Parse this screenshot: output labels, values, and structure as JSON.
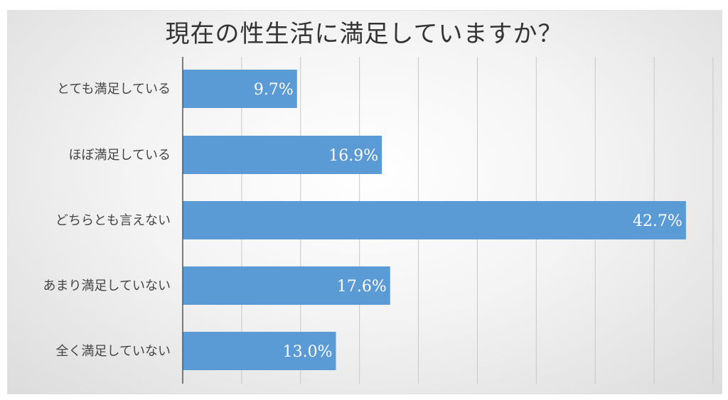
{
  "chart_data": {
    "type": "bar",
    "orientation": "horizontal",
    "title": "現在の性生活に満足していますか？",
    "categories": [
      "とても満足している",
      "ほぼ満足している",
      "どちらとも言えない",
      "あまり満足していない",
      "全く満足していない"
    ],
    "values": [
      9.7,
      16.9,
      42.7,
      17.6,
      13.0
    ],
    "data_labels": [
      "9.7%",
      "16.9%",
      "42.7%",
      "17.6%",
      "13.0%"
    ],
    "xlim": [
      0,
      45
    ],
    "grid": true,
    "bar_color": "#5b9bd5",
    "label_color": "#ffffff",
    "legend": "none"
  }
}
